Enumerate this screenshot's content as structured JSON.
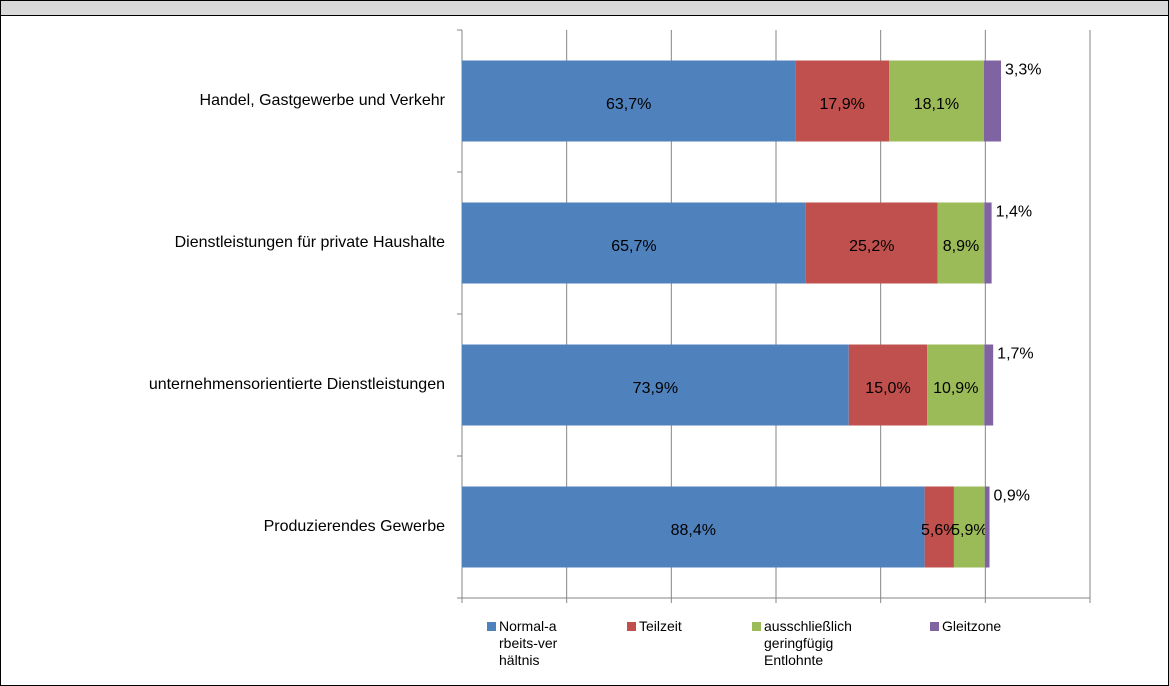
{
  "chart_data": {
    "type": "bar",
    "orientation": "horizontal",
    "stacked": true,
    "categories": [
      "Handel, Gastgewerbe und Verkehr",
      "Dienstleistungen für private Haushalte",
      "unternehmensorientierte Dienstleistungen",
      "Produzierendes Gewerbe"
    ],
    "series": [
      {
        "name": "Normal-arbeits-verhältnis",
        "color": "#4f81bd",
        "values": [
          63.7,
          65.7,
          73.9,
          88.4
        ],
        "value_labels": [
          "63,7%",
          "65,7%",
          "73,9%",
          "88,4%"
        ]
      },
      {
        "name": "Teilzeit",
        "color": "#c0504d",
        "values": [
          17.9,
          25.2,
          15.0,
          5.6
        ],
        "value_labels": [
          "17,9%",
          "25,2%",
          "15,0%",
          "5,6%"
        ]
      },
      {
        "name": "ausschließlich geringfügig Entlohnte",
        "color": "#9bbb59",
        "values": [
          18.1,
          8.9,
          10.9,
          5.9
        ],
        "value_labels": [
          "18,1%",
          "8,9%",
          "10,9%",
          "5,9%"
        ]
      },
      {
        "name": "Gleitzone",
        "color": "#8064a2",
        "values": [
          3.3,
          1.4,
          1.7,
          0.9
        ],
        "value_labels": [
          "3,3%",
          "1,4%",
          "1,7%",
          "0,9%"
        ]
      }
    ],
    "xlim": [
      0,
      120
    ],
    "xticks": [
      0,
      20,
      40,
      60,
      80,
      100,
      120
    ],
    "grid": true,
    "legend": "bottom"
  }
}
